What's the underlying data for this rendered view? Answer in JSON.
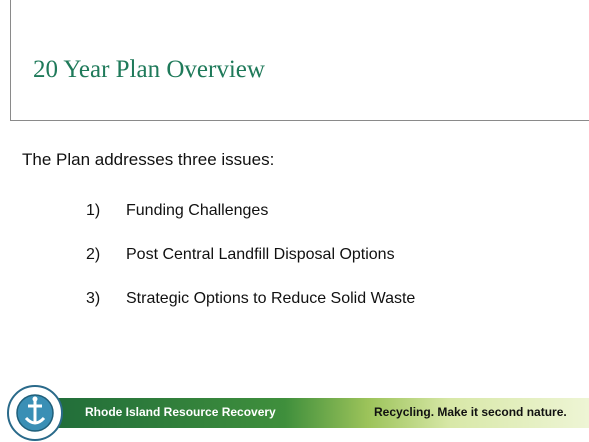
{
  "title": "20 Year Plan Overview",
  "intro": "The Plan addresses three issues:",
  "items": [
    {
      "number": "1)",
      "text": "Funding Challenges"
    },
    {
      "number": "2)",
      "text": "Post Central Landfill Disposal Options"
    },
    {
      "number": "3)",
      "text": "Strategic Options to Reduce Solid Waste"
    }
  ],
  "footer": {
    "organization": "Rhode Island Resource Recovery",
    "slogan": "Recycling. Make it second nature."
  }
}
